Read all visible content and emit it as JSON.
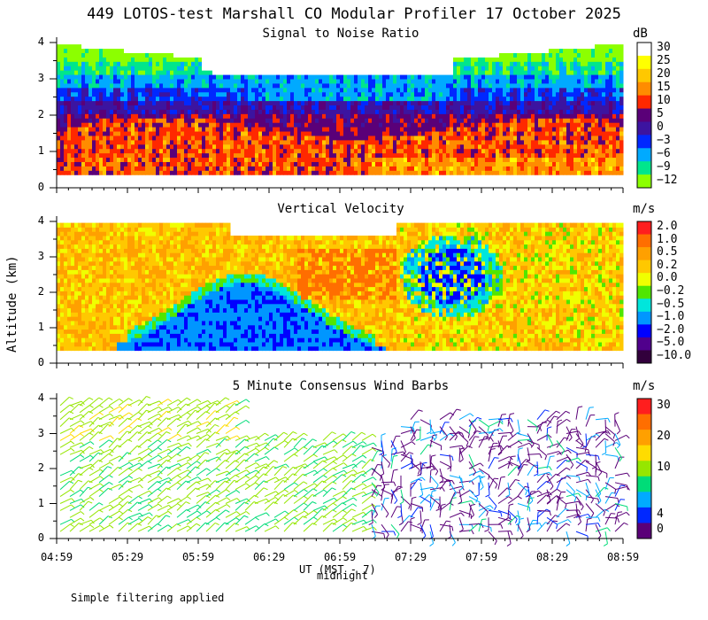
{
  "page": {
    "title": "449 LOTOS-test Marshall CO Modular Profiler 17 October 2025",
    "ylabel": "Altitude (km)",
    "xlabel": "UT  (MST - 7)",
    "xlabel_sub": "midnight",
    "note": "Simple filtering applied"
  },
  "chart_data": [
    {
      "type": "heatmap",
      "title": "Signal to Noise Ratio",
      "unit": "dB",
      "ylim": [
        0,
        4
      ],
      "yticks": [
        "0",
        "1",
        "2",
        "3",
        "4"
      ],
      "x_tick_labels": [
        "04:59",
        "05:29",
        "05:59",
        "06:29",
        "06:59",
        "07:29",
        "07:59",
        "08:29",
        "08:59"
      ],
      "colorbar": [
        {
          "label": "30",
          "color": "#ffffff"
        },
        {
          "label": "25",
          "color": "#ffff00"
        },
        {
          "label": "20",
          "color": "#ffc800"
        },
        {
          "label": "15",
          "color": "#ff8c00"
        },
        {
          "label": "10",
          "color": "#ff2800"
        },
        {
          "label": "5",
          "color": "#5a0078"
        },
        {
          "label": "0",
          "color": "#3c14a0"
        },
        {
          "label": "−3",
          "color": "#0028ff"
        },
        {
          "label": "−6",
          "color": "#00aaff"
        },
        {
          "label": "−9",
          "color": "#00e68c"
        },
        {
          "label": "−12",
          "color": "#8cff00"
        }
      ],
      "height_profile_km": [
        {
          "altitude_km": 0.5,
          "value": 12
        },
        {
          "altitude_km": 1.0,
          "value": 10
        },
        {
          "altitude_km": 1.5,
          "value": 8
        },
        {
          "altitude_km": 2.0,
          "value": 2
        },
        {
          "altitude_km": 2.5,
          "value": -3
        },
        {
          "altitude_km": 3.0,
          "value": -6
        },
        {
          "altitude_km": 3.5,
          "value": -10
        }
      ]
    },
    {
      "type": "heatmap",
      "title": "Vertical Velocity",
      "unit": "m/s",
      "ylim": [
        0,
        4
      ],
      "yticks": [
        "0",
        "1",
        "2",
        "3",
        "4"
      ],
      "x_tick_labels": [
        "04:59",
        "05:29",
        "05:59",
        "06:29",
        "06:59",
        "07:29",
        "07:59",
        "08:29",
        "08:59"
      ],
      "colorbar": [
        {
          "label": "2.0",
          "color": "#ff1e1e"
        },
        {
          "label": "1.0",
          "color": "#ff6e00"
        },
        {
          "label": "0.5",
          "color": "#ffa000"
        },
        {
          "label": "0.2",
          "color": "#ffc800"
        },
        {
          "label": "0.0",
          "color": "#f0ff00"
        },
        {
          "label": "−0.2",
          "color": "#50e600"
        },
        {
          "label": "−0.5",
          "color": "#00e6dc"
        },
        {
          "label": "−1.0",
          "color": "#0096ff"
        },
        {
          "label": "−2.0",
          "color": "#0000ff"
        },
        {
          "label": "−5.0",
          "color": "#50008c"
        },
        {
          "label": "−10.0",
          "color": "#32003c"
        }
      ]
    },
    {
      "type": "wind-barbs",
      "title": "5 Minute Consensus Wind Barbs",
      "unit": "m/s",
      "ylim": [
        0,
        4
      ],
      "yticks": [
        "0",
        "1",
        "2",
        "3",
        "4"
      ],
      "x_tick_labels": [
        "04:59",
        "05:29",
        "05:59",
        "06:29",
        "06:59",
        "07:29",
        "07:59",
        "08:29",
        "08:59"
      ],
      "colorbar": [
        {
          "label": "30",
          "color": "#ff1e1e"
        },
        {
          "label": "",
          "color": "#ff6e00"
        },
        {
          "label": "20",
          "color": "#ffa000"
        },
        {
          "label": "",
          "color": "#ffdc00"
        },
        {
          "label": "10",
          "color": "#96e600"
        },
        {
          "label": "",
          "color": "#00dc78"
        },
        {
          "label": "",
          "color": "#00aaff"
        },
        {
          "label": "4",
          "color": "#0028ff"
        },
        {
          "label": "0",
          "color": "#5a0078"
        }
      ]
    }
  ]
}
